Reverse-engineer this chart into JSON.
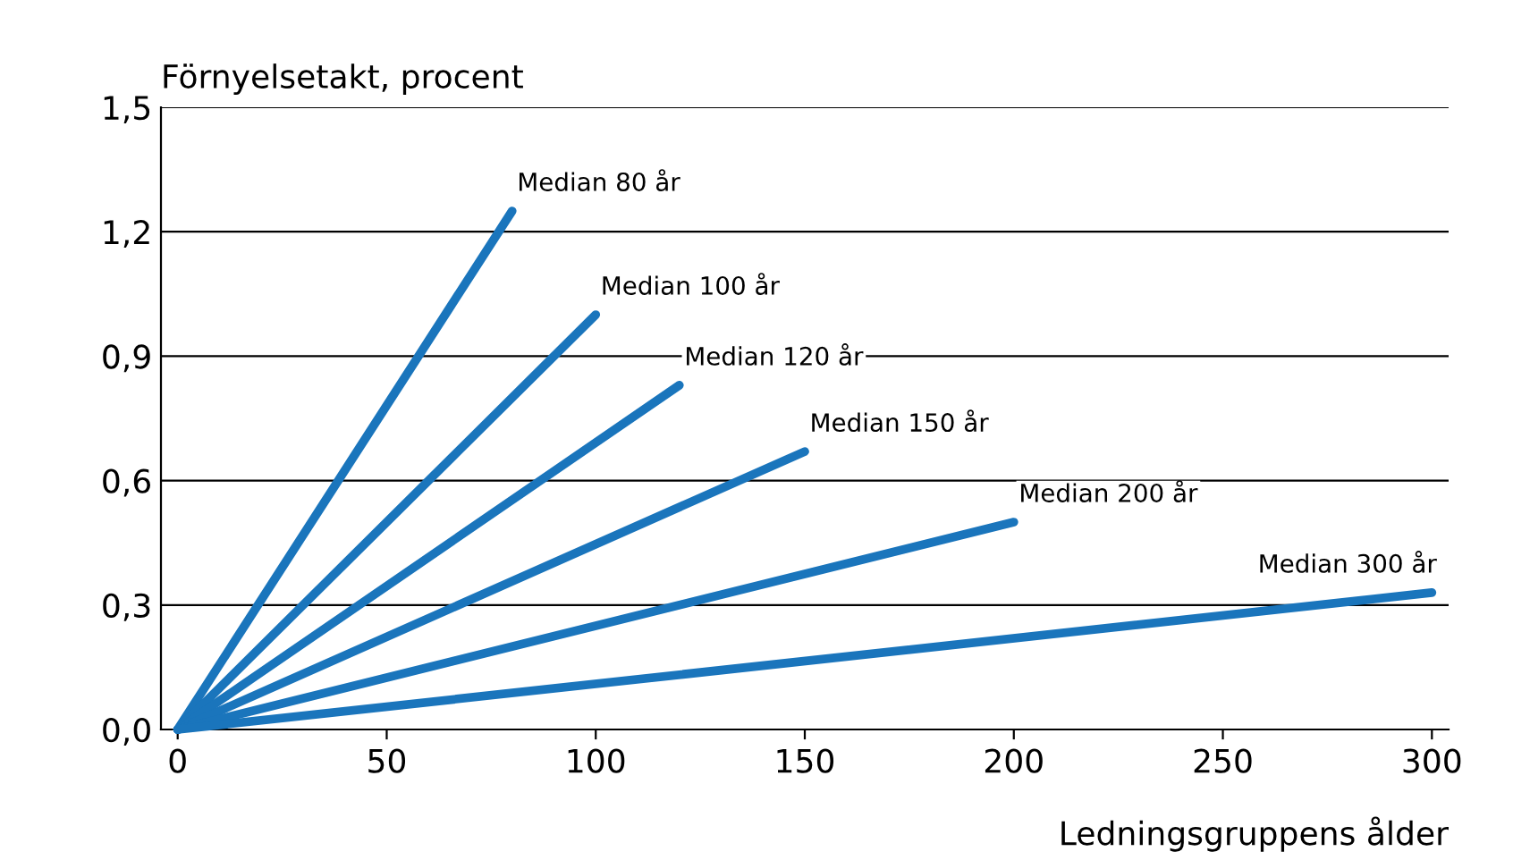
{
  "chart_data": {
    "type": "line",
    "ylabel": "Förnyelsetakt, procent",
    "xlabel": "Ledningsgruppens ålder",
    "xlim": [
      -4,
      304
    ],
    "ylim": [
      0,
      1.5
    ],
    "xticks": [
      0,
      50,
      100,
      150,
      200,
      250,
      300
    ],
    "yticks": [
      {
        "value": 0,
        "label": "0,0"
      },
      {
        "value": 0.3,
        "label": "0,3"
      },
      {
        "value": 0.6,
        "label": "0,6"
      },
      {
        "value": 0.9,
        "label": "0,9"
      },
      {
        "value": 1.2,
        "label": "1,2"
      },
      {
        "value": 1.5,
        "label": "1,5"
      }
    ],
    "grid": "y",
    "legend": false,
    "marker": "none",
    "line_style": "solid",
    "series": [
      {
        "name": "Median 80 år",
        "color": "#1a75bc",
        "x": [
          0,
          80
        ],
        "values": [
          0,
          1.25
        ]
      },
      {
        "name": "Median 100 år",
        "color": "#1a75bc",
        "x": [
          0,
          100
        ],
        "values": [
          0,
          1.0
        ]
      },
      {
        "name": "Median 120 år",
        "color": "#1a75bc",
        "x": [
          0,
          120
        ],
        "values": [
          0,
          0.83
        ]
      },
      {
        "name": "Median 150 år",
        "color": "#1a75bc",
        "x": [
          0,
          150
        ],
        "values": [
          0,
          0.67
        ]
      },
      {
        "name": "Median 200 år",
        "color": "#1a75bc",
        "x": [
          0,
          200
        ],
        "values": [
          0,
          0.5
        ]
      },
      {
        "name": "Median 300 år",
        "color": "#1a75bc",
        "x": [
          0,
          300
        ],
        "values": [
          0,
          0.33
        ]
      }
    ]
  }
}
